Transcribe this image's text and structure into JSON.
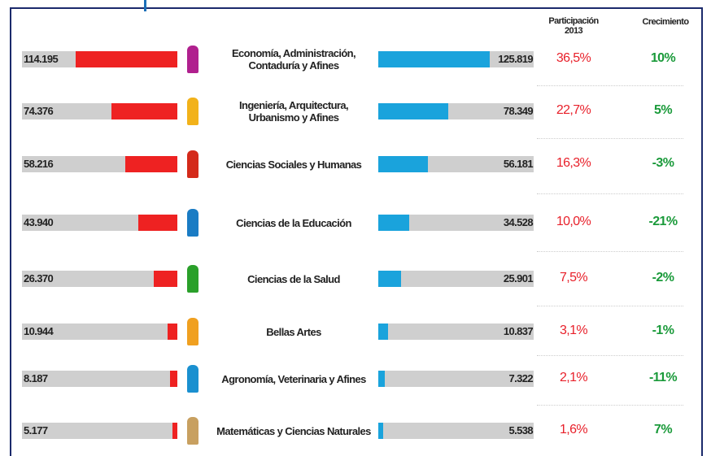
{
  "chart_data": {
    "type": "butterfly",
    "categories": [
      "Economía, Administración,\nContaduría y Afines",
      "Ingeniería, Arquitectura,\nUrbanismo y Afines",
      "Ciencias Sociales y Humanas",
      "Ciencias de la Educación",
      "Ciencias de la Salud",
      "Bellas Artes",
      "Agronomía, Veterinaria y Afines",
      "Matemáticas y Ciencias Naturales"
    ],
    "xlim": [
      0,
      175000
    ],
    "series": [
      {
        "color": "#ee2222",
        "values": [
          114195,
          74376,
          58216,
          43940,
          26370,
          10944,
          8187,
          5177
        ],
        "value_labels": [
          "114.195",
          "74.376",
          "58.216",
          "43.940",
          "26.370",
          "10.944",
          "8.187",
          "5.177"
        ]
      },
      {
        "color": "#1aa3dc",
        "values": [
          125819,
          78349,
          56181,
          34528,
          25901,
          10837,
          7322,
          5538
        ],
        "value_labels": [
          "125.819",
          "78.349",
          "56.181",
          "34.528",
          "25.901",
          "10.837",
          "7.322",
          "5.538"
        ]
      }
    ],
    "share": {
      "title": "Participación\n2013",
      "color": "#e8202a",
      "values": [
        36.5,
        22.7,
        16.3,
        10.0,
        7.5,
        3.1,
        2.1,
        1.6
      ],
      "value_labels": [
        "36,5%",
        "22,7%",
        "16,3%",
        "10,0%",
        "7,5%",
        "3,1%",
        "2,1%",
        "1,6%"
      ]
    },
    "growth": {
      "title": "Crecimiento",
      "color": "#1a9a3a",
      "values": [
        10,
        5,
        -3,
        -21,
        -2,
        -1,
        -11,
        7
      ],
      "value_labels": [
        "10%",
        "5%",
        "-3%",
        "-21%",
        "-2%",
        "-1%",
        "-11%",
        "7%"
      ]
    }
  }
}
